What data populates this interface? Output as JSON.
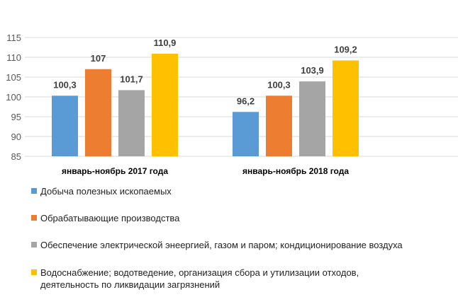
{
  "chart_data": {
    "type": "bar",
    "title": "",
    "xlabel": "",
    "ylabel": "",
    "ylim": [
      85,
      115
    ],
    "yticks": [
      85,
      90,
      95,
      100,
      105,
      110,
      115
    ],
    "grid": true,
    "legend_position": "bottom",
    "categories": [
      "январь-ноябрь 2017 года",
      "январь-ноябрь 2018 года"
    ],
    "series": [
      {
        "name": "Добыча полезных ископаемых",
        "color": "#5B9BD5",
        "values": [
          100.3,
          96.2
        ],
        "labels": [
          "100,3",
          "96,2"
        ]
      },
      {
        "name": "Обрабатывающие производства",
        "color": "#ED7D31",
        "values": [
          107,
          100.3
        ],
        "labels": [
          "107",
          "100,3"
        ]
      },
      {
        "name": "Обеспечение электрической энеергией, газом и паром; кондиционирование воздуха",
        "color": "#A5A5A5",
        "values": [
          101.7,
          103.9
        ],
        "labels": [
          "101,7",
          "103,9"
        ]
      },
      {
        "name": "Водоснабжение; водотведение, организация сбора и утилизации отходов, деятельность по ликвидации загрязнений",
        "name_lines": [
          "Водоснабжение; водотведение, организация сбора и утилизации отходов,",
          "деятельность по ликвидации загрязнений"
        ],
        "color": "#FFC000",
        "values": [
          110.9,
          109.2
        ],
        "labels": [
          "110,9",
          "109,2"
        ]
      }
    ]
  }
}
